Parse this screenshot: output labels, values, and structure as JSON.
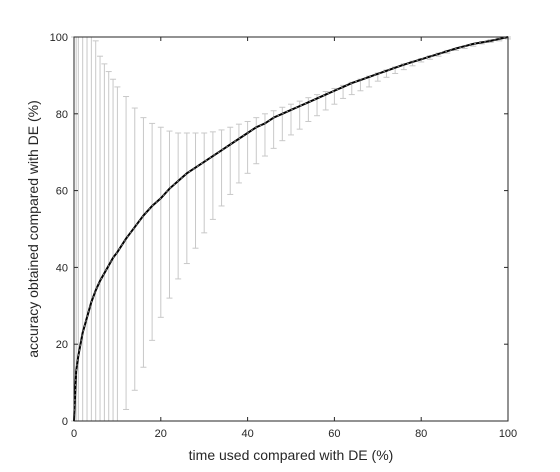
{
  "chart_data": {
    "type": "line",
    "title": "",
    "xlabel": "time used compared with DE (%)",
    "ylabel": "accuracy obtained compared with DE (%)",
    "xlim": [
      0,
      100
    ],
    "ylim": [
      0,
      100
    ],
    "xticks": [
      0,
      20,
      40,
      60,
      80,
      100
    ],
    "yticks": [
      0,
      20,
      40,
      60,
      80,
      100
    ],
    "grid": false,
    "legend": "none",
    "series": [
      {
        "x": [
          0,
          0.5,
          1,
          2,
          3,
          4,
          5,
          6,
          7,
          8,
          9,
          10,
          12,
          14,
          16,
          18,
          20,
          22,
          24,
          26,
          28,
          30,
          32,
          34,
          36,
          38,
          40,
          42,
          44,
          46,
          48,
          50,
          52,
          54,
          56,
          58,
          60,
          62,
          64,
          66,
          68,
          70,
          72,
          74,
          76,
          78,
          80,
          82,
          84,
          86,
          88,
          90,
          92,
          94,
          96,
          98,
          100
        ],
        "y": [
          0,
          13,
          17,
          23,
          27,
          31,
          34,
          36.5,
          38.5,
          40.5,
          42.5,
          44,
          47.5,
          50.5,
          53.5,
          56,
          58,
          60.5,
          62.5,
          64.5,
          66,
          67.5,
          69,
          70.5,
          72,
          73.5,
          75,
          76.5,
          77.5,
          79,
          80,
          81,
          82,
          83,
          84,
          85,
          86,
          87,
          88,
          88.8,
          89.6,
          90.4,
          91.2,
          92,
          92.8,
          93.5,
          94.2,
          94.9,
          95.6,
          96.3,
          97,
          97.6,
          98.2,
          98.6,
          99,
          99.5,
          100
        ],
        "lower": [
          0,
          0,
          0,
          0,
          0,
          0,
          0,
          0,
          0,
          0,
          0,
          0,
          3,
          8,
          14,
          21,
          27,
          32,
          37,
          41,
          45,
          49,
          52.5,
          56,
          59,
          62,
          64.5,
          67,
          69,
          71,
          73,
          74.5,
          76,
          78,
          79.5,
          81,
          82.5,
          84,
          85,
          86,
          87,
          88.5,
          89.5,
          90.5,
          91.5,
          92.5,
          93.5,
          94.2,
          95,
          95.8,
          96.5,
          97,
          97.6,
          98.2,
          98.6,
          99,
          99.5
        ],
        "upper": [
          100,
          100,
          100,
          100,
          100,
          100,
          99,
          95,
          93,
          91,
          89,
          87,
          84.5,
          81.5,
          79,
          77.5,
          76.5,
          75.5,
          75,
          75,
          75,
          75,
          75.3,
          75.8,
          76.5,
          77.3,
          78,
          79,
          80,
          80.8,
          81.7,
          82.5,
          83.3,
          84.2,
          85,
          85.8,
          86.6,
          87.4,
          88.2,
          89,
          89.8,
          90.6,
          91.4,
          92.2,
          93,
          93.7,
          94.4,
          95.1,
          95.8,
          96.5,
          97,
          97.6,
          98.2,
          98.8,
          99.3,
          99.7,
          100
        ]
      }
    ]
  }
}
